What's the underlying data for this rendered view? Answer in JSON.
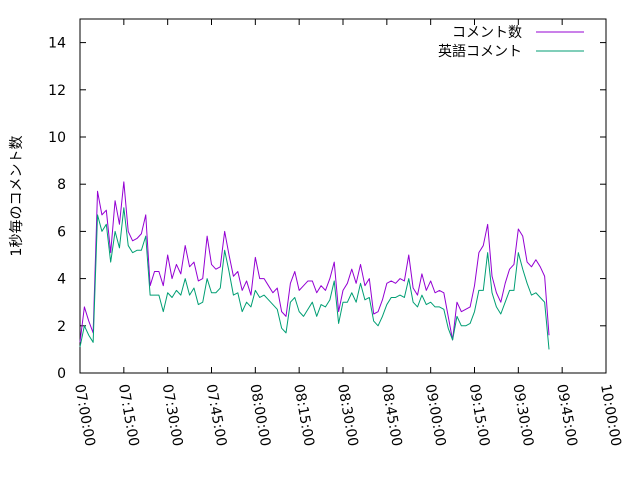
{
  "chart_data": {
    "type": "line",
    "title": "",
    "xlabel": "",
    "ylabel": "1秒毎のコメント数",
    "xlim": [
      "07:00:00",
      "10:00:00"
    ],
    "ylim": [
      0,
      15
    ],
    "x_ticks": [
      "07:00:00",
      "07:15:00",
      "07:30:00",
      "07:45:00",
      "08:00:00",
      "08:15:00",
      "08:30:00",
      "08:45:00",
      "09:00:00",
      "09:15:00",
      "09:30:00",
      "09:45:00",
      "10:00:00"
    ],
    "y_ticks": [
      0,
      2,
      4,
      6,
      8,
      10,
      12,
      14
    ],
    "grid": false,
    "legend": "top-right",
    "x_step_seconds": 90,
    "x_start": "07:00:00",
    "series": [
      {
        "name": "コメント数",
        "color": "#9400d3",
        "values": [
          1.3,
          2.8,
          2.2,
          1.7,
          7.7,
          6.7,
          6.9,
          5.1,
          7.3,
          6.3,
          8.1,
          6.0,
          5.6,
          5.7,
          5.9,
          6.7,
          3.7,
          4.3,
          4.3,
          3.7,
          5.0,
          4.0,
          4.6,
          4.2,
          5.4,
          4.5,
          4.7,
          3.9,
          4.0,
          5.8,
          4.6,
          4.4,
          4.5,
          6.0,
          5.0,
          4.1,
          4.3,
          3.5,
          3.9,
          3.3,
          4.9,
          4.0,
          4.0,
          3.7,
          3.4,
          3.6,
          2.6,
          2.4,
          3.8,
          4.3,
          3.5,
          3.7,
          3.9,
          3.9,
          3.4,
          3.7,
          3.5,
          4.0,
          4.7,
          2.6,
          3.5,
          3.8,
          4.4,
          3.8,
          4.6,
          3.7,
          4.0,
          2.5,
          2.6,
          3.1,
          3.8,
          3.9,
          3.8,
          4.0,
          3.9,
          5.0,
          3.6,
          3.3,
          4.2,
          3.5,
          3.9,
          3.4,
          3.5,
          3.4,
          2.4,
          1.4,
          3.0,
          2.6,
          2.7,
          2.8,
          3.7,
          5.1,
          5.4,
          6.3,
          4.1,
          3.4,
          3.0,
          3.8,
          4.4,
          4.6,
          6.1,
          5.8,
          4.7,
          4.5,
          4.8,
          4.5,
          4.1,
          1.6
        ]
      },
      {
        "name": "英語コメント",
        "color": "#009e73",
        "values": [
          1.1,
          2.0,
          1.6,
          1.3,
          6.7,
          6.0,
          6.3,
          4.7,
          6.0,
          5.3,
          7.0,
          5.4,
          5.1,
          5.2,
          5.2,
          5.8,
          3.3,
          3.3,
          3.3,
          2.6,
          3.4,
          3.2,
          3.5,
          3.3,
          4.0,
          3.3,
          3.6,
          2.9,
          3.0,
          4.0,
          3.4,
          3.4,
          3.6,
          5.2,
          4.3,
          3.3,
          3.4,
          2.6,
          3.0,
          2.8,
          3.5,
          3.2,
          3.3,
          3.1,
          2.9,
          2.7,
          1.9,
          1.7,
          3.0,
          3.2,
          2.6,
          2.4,
          2.7,
          3.0,
          2.4,
          2.9,
          2.8,
          3.1,
          3.9,
          2.1,
          3.0,
          3.0,
          3.4,
          3.0,
          3.8,
          3.1,
          3.2,
          2.2,
          2.0,
          2.4,
          2.9,
          3.2,
          3.2,
          3.3,
          3.2,
          4.0,
          3.0,
          2.8,
          3.3,
          2.9,
          3.0,
          2.8,
          2.8,
          2.7,
          1.9,
          1.4,
          2.4,
          2.0,
          2.0,
          2.1,
          2.6,
          3.5,
          3.5,
          5.1,
          3.4,
          2.8,
          2.5,
          3.0,
          3.5,
          3.5,
          5.1,
          4.4,
          3.8,
          3.3,
          3.4,
          3.2,
          3.0,
          1.0
        ]
      }
    ]
  }
}
